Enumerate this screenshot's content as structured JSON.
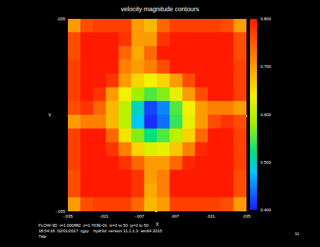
{
  "chart_data": {
    "type": "heatmap",
    "title": "velocity magnitude contours",
    "xlabel": "X",
    "ylabel": "Y",
    "xlim": [
      -0.035,
      0.035
    ],
    "ylim": [
      -0.035,
      0.035
    ],
    "xticks": [
      {
        "value": -0.035,
        "label": "-.035"
      },
      {
        "value": -0.021,
        "label": "-.021"
      },
      {
        "value": -0.007,
        "label": "-.007"
      },
      {
        "value": 0.007,
        "label": ".007"
      },
      {
        "value": 0.021,
        "label": ".021"
      },
      {
        "value": 0.035,
        "label": ".035"
      }
    ],
    "yticks": [
      {
        "value": -0.035,
        "label": "-.035"
      },
      {
        "value": 0.035,
        "label": ".035"
      }
    ],
    "cells": {
      "x": [
        -0.0325,
        -0.0275,
        -0.0225,
        -0.0175,
        -0.0125,
        -0.0075,
        -0.0025,
        0.0025,
        0.0075,
        0.0125,
        0.0175,
        0.0225,
        0.0275,
        0.0325
      ],
      "y": [
        0.0325,
        0.0275,
        0.0225,
        0.0175,
        0.0125,
        0.0075,
        0.0025,
        -0.0025,
        -0.0075,
        -0.0125,
        -0.0175,
        -0.0225,
        -0.0275,
        -0.0325
      ],
      "values": [
        [
          0.7,
          0.76,
          0.77,
          0.77,
          0.77,
          0.7,
          0.68,
          0.74,
          0.77,
          0.77,
          0.77,
          0.77,
          0.76,
          0.7
        ],
        [
          0.76,
          0.8,
          0.8,
          0.8,
          0.78,
          0.7,
          0.7,
          0.78,
          0.8,
          0.8,
          0.8,
          0.8,
          0.8,
          0.76
        ],
        [
          0.76,
          0.8,
          0.8,
          0.8,
          0.74,
          0.69,
          0.74,
          0.8,
          0.8,
          0.8,
          0.8,
          0.8,
          0.8,
          0.76
        ],
        [
          0.77,
          0.8,
          0.8,
          0.8,
          0.72,
          0.7,
          0.72,
          0.76,
          0.8,
          0.8,
          0.8,
          0.8,
          0.8,
          0.77
        ],
        [
          0.77,
          0.8,
          0.8,
          0.78,
          0.7,
          0.66,
          0.64,
          0.66,
          0.7,
          0.76,
          0.8,
          0.8,
          0.8,
          0.77
        ],
        [
          0.77,
          0.8,
          0.78,
          0.7,
          0.64,
          0.58,
          0.55,
          0.57,
          0.63,
          0.7,
          0.76,
          0.8,
          0.8,
          0.77
        ],
        [
          0.76,
          0.78,
          0.74,
          0.68,
          0.6,
          0.5,
          0.42,
          0.45,
          0.55,
          0.64,
          0.7,
          0.72,
          0.72,
          0.7
        ],
        [
          0.7,
          0.72,
          0.72,
          0.68,
          0.6,
          0.48,
          0.41,
          0.44,
          0.54,
          0.63,
          0.7,
          0.76,
          0.78,
          0.76
        ],
        [
          0.77,
          0.8,
          0.8,
          0.74,
          0.65,
          0.57,
          0.52,
          0.55,
          0.6,
          0.66,
          0.74,
          0.8,
          0.8,
          0.77
        ],
        [
          0.77,
          0.8,
          0.8,
          0.78,
          0.72,
          0.66,
          0.62,
          0.63,
          0.67,
          0.72,
          0.79,
          0.8,
          0.8,
          0.77
        ],
        [
          0.77,
          0.8,
          0.8,
          0.8,
          0.78,
          0.74,
          0.7,
          0.7,
          0.74,
          0.79,
          0.8,
          0.8,
          0.8,
          0.77
        ],
        [
          0.76,
          0.8,
          0.8,
          0.8,
          0.8,
          0.78,
          0.7,
          0.72,
          0.8,
          0.8,
          0.8,
          0.8,
          0.8,
          0.76
        ],
        [
          0.76,
          0.8,
          0.8,
          0.8,
          0.8,
          0.78,
          0.69,
          0.72,
          0.8,
          0.8,
          0.8,
          0.8,
          0.8,
          0.76
        ],
        [
          0.7,
          0.76,
          0.77,
          0.77,
          0.77,
          0.74,
          0.68,
          0.7,
          0.77,
          0.77,
          0.77,
          0.77,
          0.76,
          0.7
        ]
      ]
    },
    "colorbar": {
      "range": [
        0.4,
        0.8
      ],
      "ticks": [
        {
          "value": 0.4,
          "label": "0.400"
        },
        {
          "value": 0.5,
          "label": "0.500"
        },
        {
          "value": 0.6,
          "label": "0.600"
        },
        {
          "value": 0.7,
          "label": "0.700"
        },
        {
          "value": 0.8,
          "label": "0.800"
        }
      ]
    },
    "annotations": [
      "FLOW-3D  t=1.000882  z=1.703E-01  ix=2 to 50  jy=2 to 50",
      "18:54:16  02/01/2017  rgpy    hydr3d  version 11.1.1.3  win64 2015",
      "Title",
      "11"
    ]
  }
}
